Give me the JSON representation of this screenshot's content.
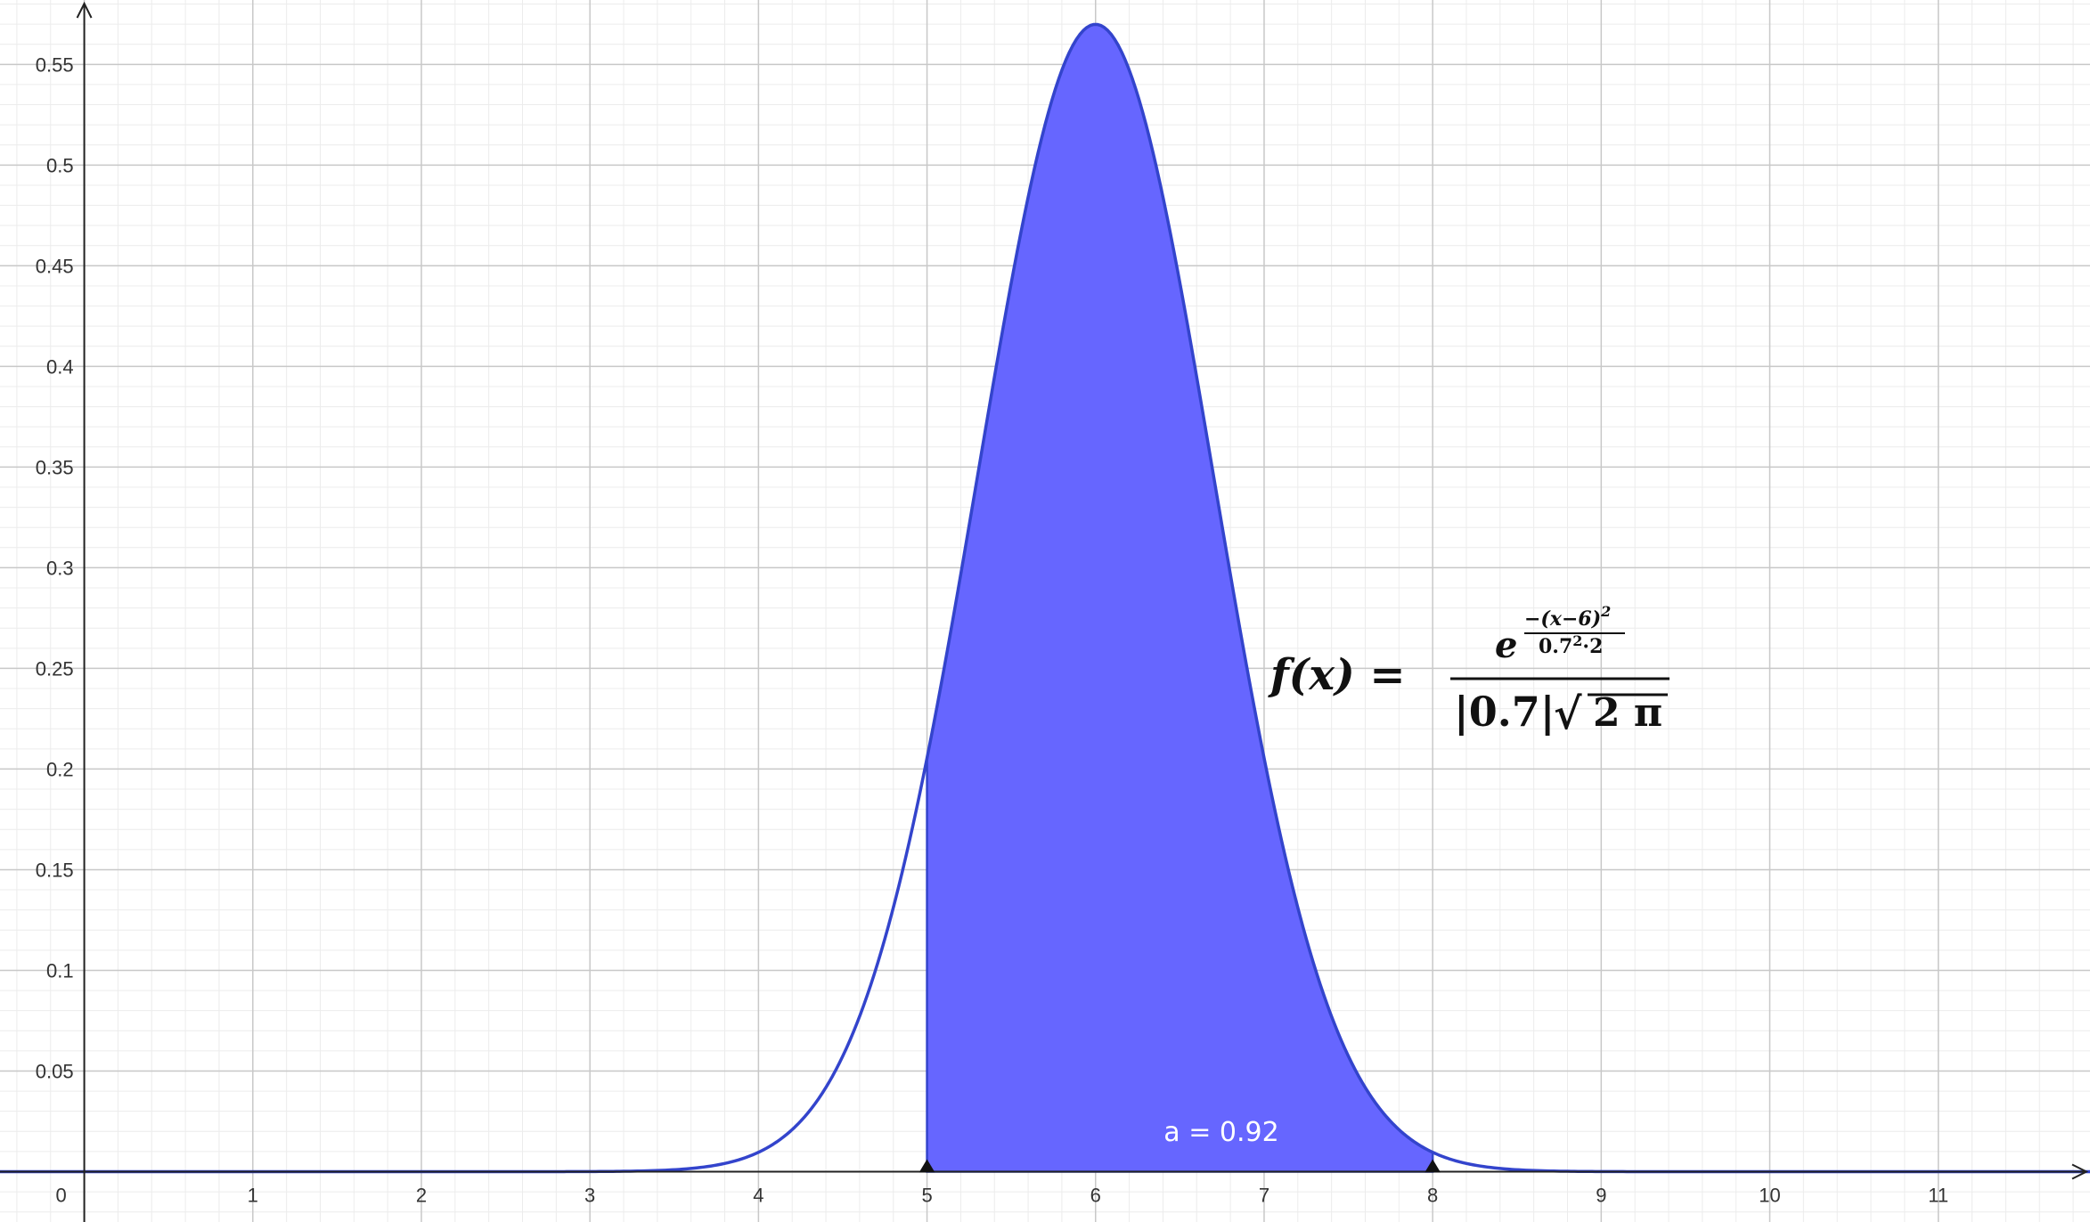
{
  "chart_data": {
    "type": "area",
    "title": "",
    "xlabel": "",
    "ylabel": "",
    "xlim": [
      -0.5,
      11.9
    ],
    "ylim": [
      -0.025,
      0.582
    ],
    "grid": true,
    "x_ticks": [
      0,
      1,
      2,
      3,
      4,
      5,
      6,
      7,
      8,
      9,
      10,
      11
    ],
    "x_tick_labels": [
      "0",
      "1",
      "2",
      "3",
      "4",
      "5",
      "6",
      "7",
      "8",
      "9",
      "10",
      "11"
    ],
    "y_ticks": [
      0.05,
      0.1,
      0.15,
      0.2,
      0.25,
      0.3,
      0.35,
      0.4,
      0.45,
      0.5,
      0.55
    ],
    "y_tick_labels": [
      "0.05",
      "0.1",
      "0.15",
      "0.2",
      "0.25",
      "0.3",
      "0.35",
      "0.4",
      "0.45",
      "0.5",
      "0.55"
    ],
    "series": [
      {
        "function": "normal_pdf",
        "mu": 6,
        "sigma": 0.7,
        "color": "#3344cc",
        "x": [
          3,
          3.5,
          4,
          4.5,
          5,
          5.5,
          6,
          6.5,
          7,
          7.5,
          8,
          8.5,
          9
        ],
        "y": [
          0.0,
          0.001,
          0.009,
          0.057,
          0.206,
          0.443,
          0.57,
          0.443,
          0.206,
          0.057,
          0.009,
          0.001,
          0.0
        ]
      }
    ],
    "shaded_region": {
      "from": 5,
      "to": 8,
      "fill": "#6666ff",
      "area_value": 0.92
    },
    "points": [
      {
        "x": 5,
        "y": 0
      },
      {
        "x": 8,
        "y": 0
      }
    ],
    "annotation": "a = 0.92",
    "formula": {
      "lhs": "f(x) =",
      "exp_base": "e",
      "exp_numerator": "−(x−6)",
      "exp_numerator_power": "2",
      "exp_denominator": "0.7",
      "exp_denominator_power": "2",
      "exp_denominator_tail": "·2",
      "denominator_abs": "|0.7|",
      "denominator_sqrt": "√",
      "denominator_radicand": "2 π"
    }
  }
}
